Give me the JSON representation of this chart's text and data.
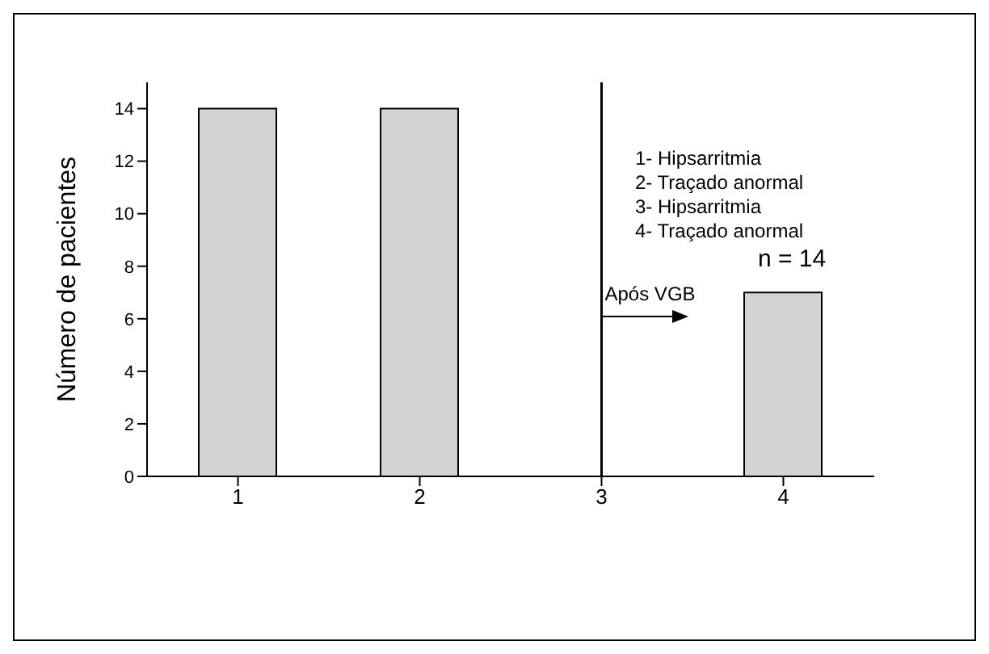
{
  "chart_data": {
    "type": "bar",
    "ylabel": "Número de pacientes",
    "categories": [
      "1",
      "2",
      "3",
      "4"
    ],
    "values": [
      14,
      14,
      0,
      7
    ],
    "color": "#d3d3d3",
    "ylim": [
      0,
      15
    ],
    "yticks": [
      0,
      2,
      4,
      6,
      8,
      10,
      12,
      14
    ],
    "grid": false,
    "ref_lines": [
      {
        "axis": "x",
        "value": "3",
        "label": "Após VGB",
        "color": "#000000"
      }
    ],
    "annotations": [
      "1- Hipsarritmia",
      "2- Traçado anormal",
      "3- Hipsarritmia",
      "4- Traçado anormal",
      "n = 14"
    ]
  }
}
